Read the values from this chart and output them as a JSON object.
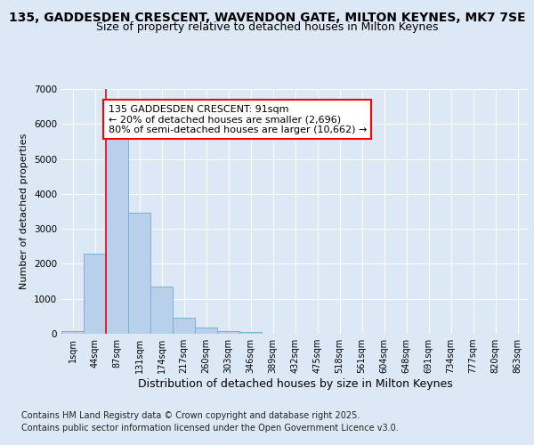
{
  "title_line1": "135, GADDESDEN CRESCENT, WAVENDON GATE, MILTON KEYNES, MK7 7SE",
  "title_line2": "Size of property relative to detached houses in Milton Keynes",
  "xlabel": "Distribution of detached houses by size in Milton Keynes",
  "ylabel": "Number of detached properties",
  "background_color": "#dce8f5",
  "plot_bg_color": "#dce8f5",
  "bar_color": "#b8d0ea",
  "bar_edge_color": "#7aafd4",
  "categories": [
    "1sqm",
    "44sqm",
    "87sqm",
    "131sqm",
    "174sqm",
    "217sqm",
    "260sqm",
    "303sqm",
    "346sqm",
    "389sqm",
    "432sqm",
    "475sqm",
    "518sqm",
    "561sqm",
    "604sqm",
    "648sqm",
    "691sqm",
    "734sqm",
    "777sqm",
    "820sqm",
    "863sqm"
  ],
  "bar_heights": [
    75,
    2300,
    5600,
    3450,
    1350,
    450,
    175,
    75,
    50,
    0,
    0,
    0,
    0,
    0,
    0,
    0,
    0,
    0,
    0,
    0,
    0
  ],
  "ylim": [
    0,
    7000
  ],
  "yticks": [
    0,
    1000,
    2000,
    3000,
    4000,
    5000,
    6000,
    7000
  ],
  "red_line_index": 2,
  "annotation_text": "135 GADDESDEN CRESCENT: 91sqm\n← 20% of detached houses are smaller (2,696)\n80% of semi-detached houses are larger (10,662) →",
  "footnote_line1": "Contains HM Land Registry data © Crown copyright and database right 2025.",
  "footnote_line2": "Contains public sector information licensed under the Open Government Licence v3.0.",
  "grid_color": "#ffffff",
  "title_fontsize": 10,
  "subtitle_fontsize": 9,
  "annotation_fontsize": 8,
  "xlabel_fontsize": 9,
  "ylabel_fontsize": 8,
  "tick_fontsize": 7.5,
  "footnote_fontsize": 7
}
